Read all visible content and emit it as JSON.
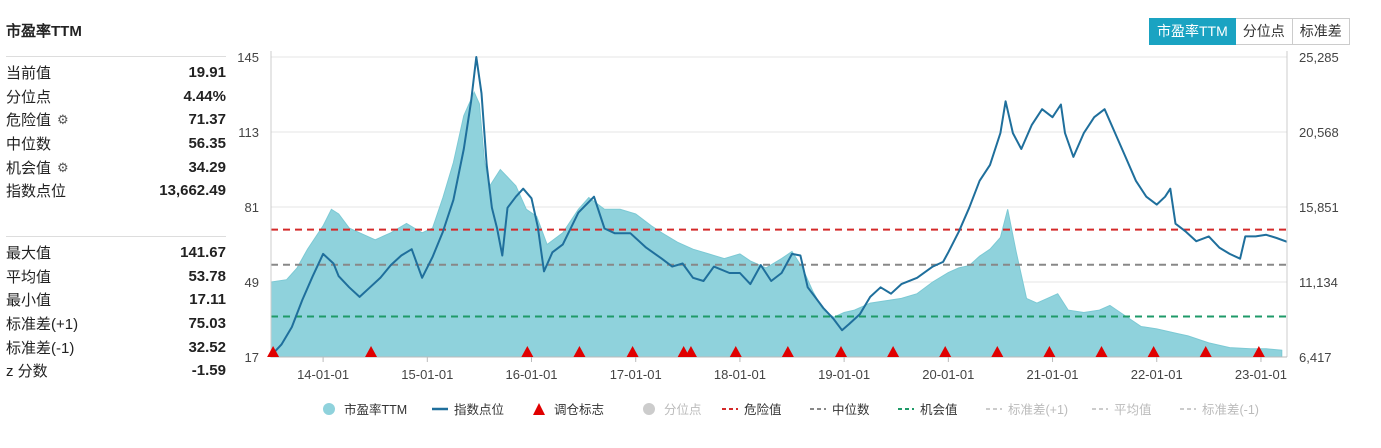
{
  "title": "市盈率TTM",
  "stats_top": [
    {
      "label": "当前值",
      "value": "19.91",
      "gear": false
    },
    {
      "label": "分位点",
      "value": "4.44%",
      "gear": false
    },
    {
      "label": "危险值",
      "value": "71.37",
      "gear": true
    },
    {
      "label": "中位数",
      "value": "56.35",
      "gear": false
    },
    {
      "label": "机会值",
      "value": "34.29",
      "gear": true
    },
    {
      "label": "指数点位",
      "value": "13,662.49",
      "gear": false
    }
  ],
  "stats_bottom": [
    {
      "label": "最大值",
      "value": "141.67"
    },
    {
      "label": "平均值",
      "value": "53.78"
    },
    {
      "label": "最小值",
      "value": "17.11"
    },
    {
      "label": "标准差(+1)",
      "value": "75.03"
    },
    {
      "label": "标准差(-1)",
      "value": "32.52"
    },
    {
      "label": "z 分数",
      "value": "-1.59"
    }
  ],
  "tabs": [
    {
      "label": "市盈率TTM",
      "active": true
    },
    {
      "label": "分位点",
      "active": false
    },
    {
      "label": "标准差",
      "active": false
    }
  ],
  "icons": {
    "settings": "gear-icon"
  },
  "colors": {
    "pe_fill": "#8fd2dc",
    "index_line": "#1f6f9c",
    "danger": "#d42a2a",
    "median": "#888888",
    "opportunity": "#1f9a68",
    "rebalance": "#e00000",
    "tab_active": "#1aa3c2"
  },
  "chart_data": {
    "type": "area",
    "left_axis": {
      "ticks": [
        "145",
        "113",
        "81",
        "49",
        "17"
      ],
      "range": [
        17,
        145
      ]
    },
    "right_axis": {
      "ticks": [
        "25,285",
        "20,568",
        "15,851",
        "11,134",
        "6,417"
      ],
      "range": [
        6417,
        25285
      ]
    },
    "x_ticks": [
      "14-01-01",
      "15-01-01",
      "16-01-01",
      "17-01-01",
      "18-01-01",
      "19-01-01",
      "20-01-01",
      "21-01-01",
      "22-01-01",
      "23-01-01"
    ],
    "x_range": [
      2013.5,
      2023.25
    ],
    "series": [
      {
        "name": "市盈率TTM",
        "kind": "area",
        "axis": "left",
        "points": [
          [
            2013.5,
            49
          ],
          [
            2013.65,
            50
          ],
          [
            2013.75,
            55
          ],
          [
            2013.85,
            63
          ],
          [
            2014.0,
            73
          ],
          [
            2014.08,
            80
          ],
          [
            2014.15,
            78
          ],
          [
            2014.25,
            72
          ],
          [
            2014.35,
            70
          ],
          [
            2014.5,
            67
          ],
          [
            2014.65,
            70
          ],
          [
            2014.8,
            74
          ],
          [
            2014.95,
            70
          ],
          [
            2015.05,
            72
          ],
          [
            2015.15,
            85
          ],
          [
            2015.25,
            100
          ],
          [
            2015.35,
            120
          ],
          [
            2015.45,
            130
          ],
          [
            2015.5,
            125
          ],
          [
            2015.55,
            100
          ],
          [
            2015.6,
            90
          ],
          [
            2015.7,
            97
          ],
          [
            2015.85,
            90
          ],
          [
            2015.95,
            80
          ],
          [
            2016.05,
            77
          ],
          [
            2016.15,
            65
          ],
          [
            2016.3,
            70
          ],
          [
            2016.45,
            80
          ],
          [
            2016.55,
            85
          ],
          [
            2016.7,
            80
          ],
          [
            2016.85,
            80
          ],
          [
            2017.0,
            78
          ],
          [
            2017.15,
            73
          ],
          [
            2017.25,
            70
          ],
          [
            2017.4,
            66
          ],
          [
            2017.55,
            63
          ],
          [
            2017.7,
            61
          ],
          [
            2017.85,
            59
          ],
          [
            2018.0,
            61
          ],
          [
            2018.1,
            58
          ],
          [
            2018.25,
            55
          ],
          [
            2018.4,
            59
          ],
          [
            2018.5,
            62
          ],
          [
            2018.6,
            55
          ],
          [
            2018.7,
            45
          ],
          [
            2018.8,
            37
          ],
          [
            2018.9,
            34
          ],
          [
            2019.0,
            36
          ],
          [
            2019.1,
            37
          ],
          [
            2019.25,
            40
          ],
          [
            2019.4,
            41
          ],
          [
            2019.55,
            42
          ],
          [
            2019.7,
            44
          ],
          [
            2019.85,
            49
          ],
          [
            2020.0,
            53
          ],
          [
            2020.1,
            55
          ],
          [
            2020.2,
            56
          ],
          [
            2020.3,
            60
          ],
          [
            2020.4,
            63
          ],
          [
            2020.5,
            68
          ],
          [
            2020.57,
            80
          ],
          [
            2020.65,
            62
          ],
          [
            2020.75,
            42
          ],
          [
            2020.85,
            40
          ],
          [
            2020.95,
            42
          ],
          [
            2021.05,
            44
          ],
          [
            2021.15,
            37
          ],
          [
            2021.3,
            36
          ],
          [
            2021.45,
            37
          ],
          [
            2021.55,
            39
          ],
          [
            2021.65,
            36
          ],
          [
            2021.75,
            33
          ],
          [
            2021.85,
            30
          ],
          [
            2022.0,
            29
          ],
          [
            2022.1,
            28
          ],
          [
            2022.2,
            27
          ],
          [
            2022.3,
            26
          ],
          [
            2022.5,
            23
          ],
          [
            2022.7,
            21
          ],
          [
            2022.9,
            20.5
          ],
          [
            2023.05,
            20.5
          ],
          [
            2023.2,
            19.91
          ]
        ]
      },
      {
        "name": "指数点位",
        "kind": "line",
        "axis": "right",
        "points": [
          [
            2013.5,
            6500
          ],
          [
            2013.6,
            7200
          ],
          [
            2013.7,
            8300
          ],
          [
            2013.8,
            10000
          ],
          [
            2013.9,
            11500
          ],
          [
            2014.0,
            12900
          ],
          [
            2014.1,
            12300
          ],
          [
            2014.15,
            11500
          ],
          [
            2014.25,
            10800
          ],
          [
            2014.35,
            10200
          ],
          [
            2014.45,
            10800
          ],
          [
            2014.55,
            11400
          ],
          [
            2014.65,
            12200
          ],
          [
            2014.75,
            12800
          ],
          [
            2014.85,
            13200
          ],
          [
            2014.95,
            11400
          ],
          [
            2015.05,
            12700
          ],
          [
            2015.15,
            14300
          ],
          [
            2015.25,
            16300
          ],
          [
            2015.35,
            19500
          ],
          [
            2015.42,
            22500
          ],
          [
            2015.47,
            25285
          ],
          [
            2015.52,
            23000
          ],
          [
            2015.57,
            18500
          ],
          [
            2015.62,
            15800
          ],
          [
            2015.67,
            14500
          ],
          [
            2015.72,
            12800
          ],
          [
            2015.77,
            15800
          ],
          [
            2015.85,
            16500
          ],
          [
            2015.92,
            17000
          ],
          [
            2016.0,
            16400
          ],
          [
            2016.06,
            14600
          ],
          [
            2016.12,
            11800
          ],
          [
            2016.2,
            13000
          ],
          [
            2016.3,
            13500
          ],
          [
            2016.45,
            15500
          ],
          [
            2016.6,
            16500
          ],
          [
            2016.7,
            14500
          ],
          [
            2016.8,
            14200
          ],
          [
            2016.95,
            14200
          ],
          [
            2017.1,
            13300
          ],
          [
            2017.25,
            12600
          ],
          [
            2017.35,
            12100
          ],
          [
            2017.45,
            12300
          ],
          [
            2017.55,
            11400
          ],
          [
            2017.65,
            11200
          ],
          [
            2017.75,
            12100
          ],
          [
            2017.9,
            11700
          ],
          [
            2018.0,
            11700
          ],
          [
            2018.1,
            11000
          ],
          [
            2018.2,
            12200
          ],
          [
            2018.3,
            11200
          ],
          [
            2018.4,
            11700
          ],
          [
            2018.5,
            12900
          ],
          [
            2018.58,
            12800
          ],
          [
            2018.65,
            10800
          ],
          [
            2018.72,
            10200
          ],
          [
            2018.8,
            9500
          ],
          [
            2018.9,
            8800
          ],
          [
            2018.98,
            8100
          ],
          [
            2019.05,
            8500
          ],
          [
            2019.15,
            9100
          ],
          [
            2019.25,
            10200
          ],
          [
            2019.35,
            10800
          ],
          [
            2019.45,
            10400
          ],
          [
            2019.55,
            11000
          ],
          [
            2019.7,
            11400
          ],
          [
            2019.85,
            12100
          ],
          [
            2019.95,
            12400
          ],
          [
            2020.0,
            13000
          ],
          [
            2020.1,
            14300
          ],
          [
            2020.2,
            15800
          ],
          [
            2020.3,
            17500
          ],
          [
            2020.4,
            18500
          ],
          [
            2020.5,
            20500
          ],
          [
            2020.55,
            22500
          ],
          [
            2020.62,
            20500
          ],
          [
            2020.7,
            19500
          ],
          [
            2020.8,
            21000
          ],
          [
            2020.9,
            22000
          ],
          [
            2021.0,
            21500
          ],
          [
            2021.08,
            22300
          ],
          [
            2021.12,
            20500
          ],
          [
            2021.2,
            19000
          ],
          [
            2021.3,
            20500
          ],
          [
            2021.4,
            21500
          ],
          [
            2021.5,
            22000
          ],
          [
            2021.6,
            20500
          ],
          [
            2021.7,
            19000
          ],
          [
            2021.8,
            17500
          ],
          [
            2021.9,
            16500
          ],
          [
            2022.0,
            16000
          ],
          [
            2022.08,
            16500
          ],
          [
            2022.13,
            17000
          ],
          [
            2022.18,
            14800
          ],
          [
            2022.28,
            14300
          ],
          [
            2022.38,
            13700
          ],
          [
            2022.5,
            14000
          ],
          [
            2022.6,
            13300
          ],
          [
            2022.7,
            12900
          ],
          [
            2022.8,
            12600
          ],
          [
            2022.85,
            14000
          ],
          [
            2022.95,
            14000
          ],
          [
            2023.05,
            14100
          ],
          [
            2023.15,
            13900
          ],
          [
            2023.25,
            13662
          ]
        ]
      }
    ],
    "reference_lines": [
      {
        "name": "危险值",
        "value": 71.37,
        "style": "dashed"
      },
      {
        "name": "中位数",
        "value": 56.35,
        "style": "dashed"
      },
      {
        "name": "机会值",
        "value": 34.29,
        "style": "dashed"
      }
    ],
    "rebalance_markers": {
      "name": "调仓标志",
      "x": [
        2013.52,
        2014.46,
        2015.96,
        2016.46,
        2016.97,
        2017.46,
        2017.53,
        2017.96,
        2018.46,
        2018.97,
        2019.47,
        2019.97,
        2020.47,
        2020.97,
        2021.47,
        2021.97,
        2022.47,
        2022.98
      ]
    },
    "legend": {
      "position": "bottom",
      "items": [
        {
          "label": "市盈率TTM",
          "symbol": "circle",
          "color": "#8fd2dc",
          "active": true
        },
        {
          "label": "指数点位",
          "symbol": "line",
          "color": "#1f6f9c",
          "active": true
        },
        {
          "label": "调仓标志",
          "symbol": "triangle",
          "color": "#e00000",
          "active": true
        },
        {
          "label": "分位点",
          "symbol": "circle",
          "color": "#cccccc",
          "active": false
        },
        {
          "label": "危险值",
          "symbol": "dash",
          "color": "#d42a2a",
          "active": true
        },
        {
          "label": "中位数",
          "symbol": "dash",
          "color": "#888888",
          "active": true
        },
        {
          "label": "机会值",
          "symbol": "dash",
          "color": "#1f9a68",
          "active": true
        },
        {
          "label": "标准差(+1)",
          "symbol": "dash",
          "color": "#cccccc",
          "active": false
        },
        {
          "label": "平均值",
          "symbol": "dash",
          "color": "#cccccc",
          "active": false
        },
        {
          "label": "标准差(-1)",
          "symbol": "dash",
          "color": "#cccccc",
          "active": false
        }
      ]
    }
  }
}
